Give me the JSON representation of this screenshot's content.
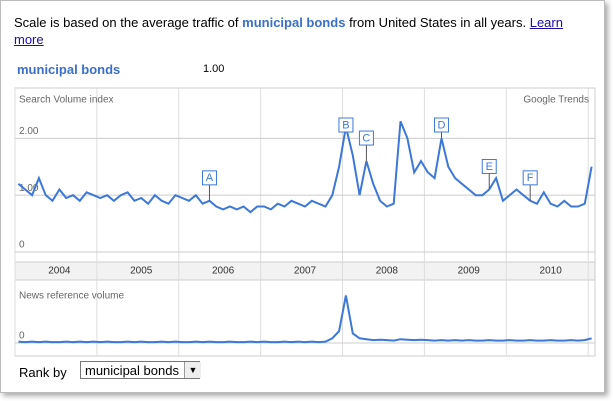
{
  "header": {
    "before": "Scale is based on the average traffic of",
    "query": "municipal bonds",
    "after": "from United States in all years.",
    "link": "Learn more"
  },
  "legend": {
    "name": "municipal bonds",
    "value": "1.00"
  },
  "rank": {
    "label": "Rank by",
    "selected": "municipal bonds"
  },
  "chart_data": [
    {
      "type": "line",
      "title": "Search Volume index",
      "source": "Google Trends",
      "categories": [
        null,
        null,
        null,
        null,
        null,
        null,
        "2004",
        null,
        null,
        null,
        null,
        null,
        null,
        null,
        null,
        null,
        null,
        null,
        "2005",
        null,
        null,
        null,
        null,
        null,
        null,
        null,
        null,
        null,
        null,
        null,
        "2006",
        null,
        null,
        null,
        null,
        null,
        null,
        null,
        null,
        null,
        null,
        null,
        "2007",
        null,
        null,
        null,
        null,
        null,
        null,
        null,
        null,
        null,
        null,
        null,
        "2008",
        null,
        null,
        null,
        null,
        null,
        null,
        null,
        null,
        null,
        null,
        null,
        "2009",
        null,
        null,
        null,
        null,
        null,
        null,
        null,
        null,
        null,
        null,
        null,
        "2010",
        null,
        null,
        null,
        null,
        null,
        null
      ],
      "series": [
        {
          "name": "municipal bonds",
          "color": "#3d78d8",
          "values": [
            1.2,
            1.1,
            1.0,
            1.3,
            1.0,
            0.9,
            1.1,
            0.95,
            1.0,
            0.9,
            1.05,
            1.0,
            0.95,
            1.0,
            0.9,
            1.0,
            1.05,
            0.9,
            0.95,
            0.85,
            1.0,
            0.9,
            0.85,
            1.0,
            0.95,
            0.9,
            1.0,
            0.85,
            0.9,
            0.8,
            0.75,
            0.8,
            0.75,
            0.8,
            0.7,
            0.8,
            0.8,
            0.75,
            0.85,
            0.8,
            0.9,
            0.85,
            0.8,
            0.9,
            0.85,
            0.8,
            1.0,
            1.5,
            2.2,
            1.7,
            1.0,
            1.6,
            1.2,
            0.9,
            0.8,
            0.85,
            2.3,
            2.0,
            1.4,
            1.6,
            1.4,
            1.3,
            2.0,
            1.5,
            1.3,
            1.2,
            1.1,
            1.0,
            1.0,
            1.1,
            1.3,
            0.9,
            1.0,
            1.1,
            1.0,
            0.9,
            0.85,
            1.05,
            0.85,
            0.8,
            0.9,
            0.8,
            0.8,
            0.85,
            1.5
          ]
        }
      ],
      "annotations": [
        {
          "label": "A",
          "index": 28
        },
        {
          "label": "B",
          "index": 48
        },
        {
          "label": "C",
          "index": 51
        },
        {
          "label": "D",
          "index": 62
        },
        {
          "label": "E",
          "index": 69
        },
        {
          "label": "F",
          "index": 75
        }
      ],
      "ylim": [
        0,
        2.85
      ],
      "yticks": [
        0,
        {
          "value": 1,
          "label": "1.00"
        },
        {
          "value": 2,
          "label": "2.00"
        }
      ],
      "grid": true
    },
    {
      "type": "line",
      "title": "News reference volume",
      "series": [
        {
          "name": "municipal bonds",
          "color": "#3d78d8",
          "values": [
            0.03,
            0.02,
            0.03,
            0.02,
            0.03,
            0.02,
            0.02,
            0.03,
            0.02,
            0.03,
            0.02,
            0.03,
            0.02,
            0.03,
            0.02,
            0.02,
            0.03,
            0.02,
            0.03,
            0.02,
            0.02,
            0.03,
            0.02,
            0.03,
            0.02,
            0.02,
            0.03,
            0.02,
            0.03,
            0.02,
            0.02,
            0.03,
            0.02,
            0.02,
            0.03,
            0.02,
            0.03,
            0.02,
            0.02,
            0.03,
            0.02,
            0.03,
            0.02,
            0.03,
            0.02,
            0.03,
            0.1,
            0.25,
            1.0,
            0.2,
            0.1,
            0.08,
            0.06,
            0.07,
            0.06,
            0.05,
            0.08,
            0.07,
            0.06,
            0.07,
            0.06,
            0.05,
            0.06,
            0.05,
            0.06,
            0.05,
            0.06,
            0.05,
            0.05,
            0.06,
            0.05,
            0.05,
            0.06,
            0.05,
            0.05,
            0.06,
            0.05,
            0.05,
            0.06,
            0.05,
            0.05,
            0.06,
            0.05,
            0.06,
            0.1
          ]
        }
      ],
      "ylim": [
        0,
        1.2
      ],
      "yticks": [
        0
      ],
      "grid": true
    }
  ]
}
